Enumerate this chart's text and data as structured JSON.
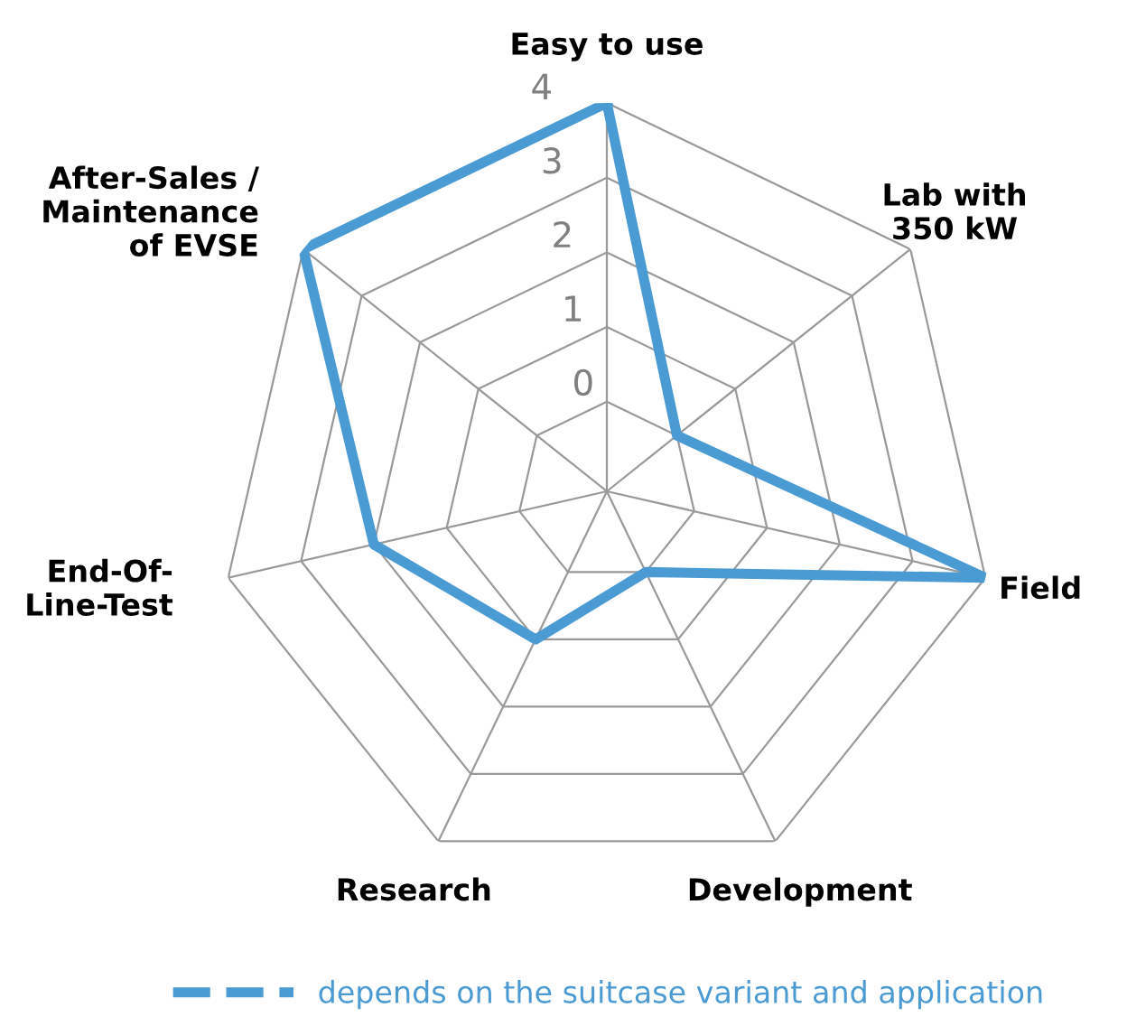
{
  "chart_data": {
    "type": "radar",
    "categories": [
      "Easy to use",
      "Lab with\n350 kW",
      "Field",
      "Development",
      "Research",
      "End-Of-\nLine-Test",
      "After-Sales /\nMaintenance\nof EVSE"
    ],
    "series": [
      {
        "name": "depends on the suitcase variant and application",
        "color": "#4a9ad4",
        "values": [
          4,
          0,
          4,
          0,
          1,
          2,
          4
        ]
      }
    ],
    "ylim": [
      -1.2,
      4
    ],
    "yticks": [
      0,
      1,
      2,
      3,
      4
    ],
    "grid": true,
    "legend": "bottom",
    "marker": "none",
    "line_style": "solid"
  }
}
